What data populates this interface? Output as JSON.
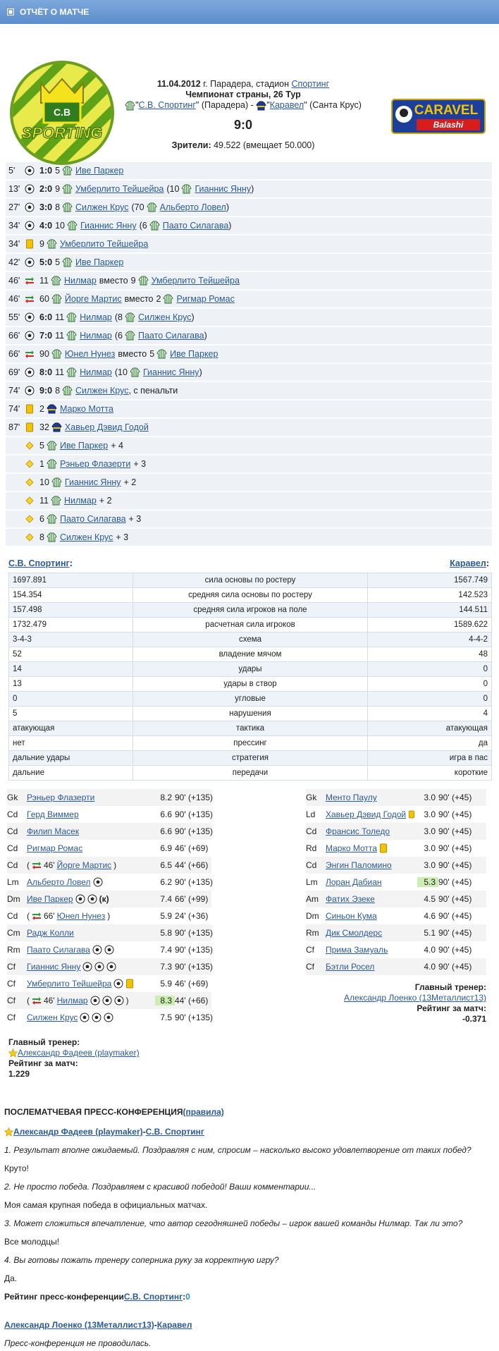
{
  "header": {
    "title": "ОТЧЁТ О МАТЧЕ"
  },
  "match": {
    "date": "11.04.2012",
    "venue": "г. Парадера, стадион",
    "stadium": "Спортинг",
    "tournament": "Чемпионат страны, 26 Тур",
    "home_open": "\"",
    "home": "С.В. Спортинг",
    "home_close": "\" (Парадера) -",
    "away_open": "\"",
    "away": "Каравел",
    "away_close": "\" (Санта Крус)",
    "score": "9:0",
    "attendance_label": "Зрители:",
    "attendance": "49.522 (вмещает 50.000)",
    "home_logo_abbr": "C.B",
    "home_logo": "SPORTING",
    "away_logo": "CARAVEL",
    "away_logo_sub": "Balashi"
  },
  "events": [
    {
      "minute": "5'",
      "icon": "goal",
      "parts": [
        {
          "score": "1:0"
        },
        {
          "num": "5",
          "kit": "home"
        },
        {
          "player": "Иве Паркер"
        }
      ]
    },
    {
      "minute": "13'",
      "icon": "goal",
      "parts": [
        {
          "score": "2:0"
        },
        {
          "num": "9",
          "kit": "home"
        },
        {
          "player": "Умберлито Тейшейра"
        },
        {
          "num": "(10",
          "kit": "home"
        },
        {
          "player": "Гианнис Янну"
        },
        {
          "text": ")"
        }
      ]
    },
    {
      "minute": "27'",
      "icon": "goal",
      "parts": [
        {
          "score": "3:0"
        },
        {
          "num": "8",
          "kit": "home"
        },
        {
          "player": "Силжен Крус"
        },
        {
          "num": "(70",
          "kit": "home"
        },
        {
          "player": "Альберто Ловел"
        },
        {
          "text": ")"
        }
      ]
    },
    {
      "minute": "34'",
      "icon": "goal",
      "parts": [
        {
          "score": "4:0"
        },
        {
          "num": "10",
          "kit": "home"
        },
        {
          "player": "Гианнис Янну"
        },
        {
          "num": "(6",
          "kit": "home"
        },
        {
          "player": "Паато Силагава"
        },
        {
          "text": ")"
        }
      ]
    },
    {
      "minute": "34'",
      "icon": "card",
      "parts": [
        {
          "num": "9",
          "kit": "home"
        },
        {
          "player": "Умберлито Тейшейра"
        }
      ]
    },
    {
      "minute": "42'",
      "icon": "goal",
      "parts": [
        {
          "score": "5:0"
        },
        {
          "num": "5",
          "kit": "home"
        },
        {
          "player": "Иве Паркер"
        }
      ]
    },
    {
      "minute": "46'",
      "icon": "sub",
      "parts": [
        {
          "num": "11",
          "kit": "home"
        },
        {
          "player": "Нилмар"
        },
        {
          "text": "вместо"
        },
        {
          "num": "9",
          "kit": "home"
        },
        {
          "player": "Умберлито Тейшейра"
        }
      ]
    },
    {
      "minute": "46'",
      "icon": "sub",
      "parts": [
        {
          "num": "60",
          "kit": "home"
        },
        {
          "player": "Йорге Мартис"
        },
        {
          "text": "вместо"
        },
        {
          "num": "2",
          "kit": "home"
        },
        {
          "player": "Ригмар Ромас"
        }
      ]
    },
    {
      "minute": "55'",
      "icon": "goal",
      "parts": [
        {
          "score": "6:0"
        },
        {
          "num": "11",
          "kit": "home"
        },
        {
          "player": "Нилмар"
        },
        {
          "num": "(8",
          "kit": "home"
        },
        {
          "player": "Силжен Крус"
        },
        {
          "text": ")"
        }
      ]
    },
    {
      "minute": "66'",
      "icon": "goal",
      "parts": [
        {
          "score": "7:0"
        },
        {
          "num": "11",
          "kit": "home"
        },
        {
          "player": "Нилмар"
        },
        {
          "num": "(6",
          "kit": "home"
        },
        {
          "player": "Паато Силагава"
        },
        {
          "text": ")"
        }
      ]
    },
    {
      "minute": "66'",
      "icon": "sub",
      "parts": [
        {
          "num": "90",
          "kit": "home"
        },
        {
          "player": "Юнел Нунез"
        },
        {
          "text": "вместо"
        },
        {
          "num": "5",
          "kit": "home"
        },
        {
          "player": "Иве Паркер"
        }
      ]
    },
    {
      "minute": "69'",
      "icon": "goal",
      "parts": [
        {
          "score": "8:0"
        },
        {
          "num": "11",
          "kit": "home"
        },
        {
          "player": "Нилмар"
        },
        {
          "num": "(10",
          "kit": "home"
        },
        {
          "player": "Гианнис Янну"
        },
        {
          "text": ")"
        }
      ]
    },
    {
      "minute": "74'",
      "icon": "goal",
      "parts": [
        {
          "score": "9:0"
        },
        {
          "num": "8",
          "kit": "home"
        },
        {
          "player": "Силжен Крус"
        },
        {
          "text": ", с пенальти"
        }
      ]
    },
    {
      "minute": "74'",
      "icon": "card",
      "parts": [
        {
          "num": "2",
          "kit": "away"
        },
        {
          "player": "Марко Мотта"
        }
      ]
    },
    {
      "minute": "87'",
      "icon": "card",
      "parts": [
        {
          "num": "32",
          "kit": "away"
        },
        {
          "player": "Хавьер Дэвид Годой"
        }
      ]
    },
    {
      "minute": null,
      "icon": "bonus",
      "parts": [
        {
          "num": "5",
          "kit": "home"
        },
        {
          "player": "Иве Паркер"
        },
        {
          "text": "+ 4"
        }
      ]
    },
    {
      "minute": null,
      "icon": "bonus",
      "parts": [
        {
          "num": "1",
          "kit": "home"
        },
        {
          "player": "Рэньер Флазерти"
        },
        {
          "text": "+ 3"
        }
      ]
    },
    {
      "minute": null,
      "icon": "bonus",
      "parts": [
        {
          "num": "10",
          "kit": "home"
        },
        {
          "player": "Гианнис Янну"
        },
        {
          "text": "+ 2"
        }
      ]
    },
    {
      "minute": null,
      "icon": "bonus",
      "parts": [
        {
          "num": "11",
          "kit": "home"
        },
        {
          "player": "Нилмар"
        },
        {
          "text": "+ 2"
        }
      ]
    },
    {
      "minute": null,
      "icon": "bonus",
      "parts": [
        {
          "num": "6",
          "kit": "home"
        },
        {
          "player": "Паато Силагава"
        },
        {
          "text": "+ 3"
        }
      ]
    },
    {
      "minute": null,
      "icon": "bonus",
      "parts": [
        {
          "num": "8",
          "kit": "home"
        },
        {
          "player": "Силжен Крус"
        },
        {
          "text": "+ 3"
        }
      ]
    }
  ],
  "stats": {
    "home": "С.В. Спортинг",
    "away": "Каравел",
    "colon": ":",
    "rows": [
      [
        "1697.891",
        "сила основы по ростеру",
        "1567.749"
      ],
      [
        "154.354",
        "средняя сила основы по ростеру",
        "142.523"
      ],
      [
        "157.498",
        "средняя сила игроков на поле",
        "144.511"
      ],
      [
        "1732.479",
        "расчетная сила игроков",
        "1589.622"
      ],
      [
        "3-4-3",
        "схема",
        "4-4-2"
      ],
      [
        "52",
        "владение мячом",
        "48"
      ],
      [
        "14",
        "удары",
        "0"
      ],
      [
        "13",
        "удары в створ",
        "0"
      ],
      [
        "0",
        "угловые",
        "0"
      ],
      [
        "5",
        "нарушения",
        "4"
      ],
      [
        "атакующая",
        "тактика",
        "атакующая"
      ],
      [
        "нет",
        "прессинг",
        "да"
      ],
      [
        "дальние удары",
        "стратегия",
        "игра в пас"
      ],
      [
        "дальние",
        "передачи",
        "короткие"
      ]
    ]
  },
  "lineups": {
    "home": [
      {
        "pos": "Gk",
        "name": "Рэньер Флазерти",
        "rating": "8.2",
        "time": "90'",
        "plus": "(+135)"
      },
      {
        "pos": "Cd",
        "name": "Герд Виммер",
        "rating": "6.6",
        "time": "90'",
        "plus": "(+135)"
      },
      {
        "pos": "Cd",
        "name": "Филип Масек",
        "rating": "6.6",
        "time": "90'",
        "plus": "(+135)"
      },
      {
        "pos": "Cd",
        "name": "Ригмар Ромас",
        "rating": "6.9",
        "time": "46'",
        "plus": "(+69)"
      },
      {
        "pos": "Cd",
        "prefix": "(",
        "sub_minute": "46'",
        "name": "Йорге Мартис",
        "suffix": ")",
        "rating": "6.5",
        "time": "44'",
        "plus": "(+66)"
      },
      {
        "pos": "Lm",
        "name": "Альберто Ловел",
        "goals": 1,
        "rating": "6.2",
        "time": "90'",
        "plus": "(+135)"
      },
      {
        "pos": "Dm",
        "name": "Иве Паркер",
        "goals": 2,
        "captain": "(к)",
        "rating": "7.4",
        "time": "66'",
        "plus": "(+99)"
      },
      {
        "pos": "Cd",
        "prefix": "(",
        "sub_minute": "66'",
        "name": "Юнел Нунез",
        "suffix": ")",
        "rating": "5.9",
        "time": "24'",
        "plus": "(+36)"
      },
      {
        "pos": "Cm",
        "name": "Радж Колли",
        "rating": "5.8",
        "time": "90'",
        "plus": "(+135)"
      },
      {
        "pos": "Rm",
        "name": "Паато Силагава",
        "goals": 2,
        "rating": "7.4",
        "time": "90'",
        "plus": "(+135)"
      },
      {
        "pos": "Cf",
        "name": "Гианнис Янну",
        "goals": 3,
        "rating": "7.3",
        "time": "90'",
        "plus": "(+135)"
      },
      {
        "pos": "Cf",
        "name": "Умберлито Тейшейра",
        "goals": 1,
        "card": true,
        "rating": "5.9",
        "time": "46'",
        "plus": "(+69)"
      },
      {
        "pos": "Cf",
        "prefix": "(",
        "sub_minute": "46'",
        "name": "Нилмар",
        "goals": 3,
        "suffix": ")",
        "rating": "8.3",
        "best": true,
        "time": "44'",
        "plus": "(+66)"
      },
      {
        "pos": "Cf",
        "name": "Силжен Крус",
        "goals": 3,
        "rating": "7.5",
        "time": "90'",
        "plus": "(+135)"
      }
    ],
    "away": [
      {
        "pos": "Gk",
        "name": "Менто Паулу",
        "rating": "3.0",
        "time": "90'",
        "plus": "(+45)"
      },
      {
        "pos": "Ld",
        "name": "Хавьер Дэвид Годой",
        "card": true,
        "rating": "3.0",
        "time": "90'",
        "plus": "(+45)"
      },
      {
        "pos": "Cd",
        "name": "Франсис Толедо",
        "rating": "3.0",
        "time": "90'",
        "plus": "(+45)"
      },
      {
        "pos": "Rd",
        "name": "Марко Мотта",
        "card": true,
        "rating": "3.0",
        "time": "90'",
        "plus": "(+45)"
      },
      {
        "pos": "Cd",
        "name": "Энгин Паломино",
        "rating": "3.0",
        "time": "90'",
        "plus": "(+45)"
      },
      {
        "pos": "Lm",
        "name": "Лоран Дабиан",
        "rating": "5.3",
        "best": true,
        "time": "90'",
        "plus": "(+45)"
      },
      {
        "pos": "Am",
        "name": "Фатих Эзеке",
        "rating": "4.5",
        "time": "90'",
        "plus": "(+45)"
      },
      {
        "pos": "Dm",
        "name": "Синьон Кума",
        "rating": "4.6",
        "time": "90'",
        "plus": "(+45)"
      },
      {
        "pos": "Rm",
        "name": "Дик Смолдерс",
        "rating": "5.1",
        "time": "90'",
        "plus": "(+45)"
      },
      {
        "pos": "Cf",
        "name": "Прима Замуаль",
        "rating": "4.0",
        "time": "90'",
        "plus": "(+45)"
      },
      {
        "pos": "Cf",
        "name": "Бэтли Росел",
        "rating": "4.0",
        "time": "90'",
        "plus": "(+45)"
      }
    ]
  },
  "coaches": {
    "home": {
      "label": "Главный тренер:",
      "name": "Александр Фадеев (playmaker)",
      "rating_label": "Рейтинг за матч:",
      "rating": "1.229"
    },
    "away": {
      "label": "Главный тренер:",
      "name": "Александр Лоенко (13Металлист13)",
      "rating_label": "Рейтинг за матч:",
      "rating": "-0.371"
    }
  },
  "press": {
    "title": "ПОСЛЕМАТЧЕВАЯ ПРЕСС-КОНФЕРЕНЦИЯ",
    "rules": "(правила)",
    "separator": "-",
    "home": {
      "coach": "Александр Фадеев (playmaker)",
      "team": "С.В. Спортинг",
      "qa": [
        [
          "1. Результат вполне ожидаемый. Поздравляя с ним, спросим – насколько высоко удовлетворение от таких побед?",
          "Круто!"
        ],
        [
          "2. Не просто победа. Поздравляем с красивой победой! Ваши комментарии...",
          "Моя самая крупная победа в официальных матчах."
        ],
        [
          "3. Может сложиться впечатление, что автор сегодняшней победы – игрок вашей команды Нилмар. Так ли это?",
          "Все молодцы!"
        ],
        [
          "4. Вы готовы пожать тренеру соперника руку за корректную игру?",
          "Да."
        ]
      ],
      "rating_label": "Рейтинг пресс-конференции",
      "rating_team": "С.В. Спортинг",
      "rating_colon": ":",
      "rating": "0"
    },
    "away": {
      "coach": "Александр Лоенко (13Металлист13)",
      "team": "Каравел",
      "note": "Пресс-конференция не проводилась."
    }
  }
}
